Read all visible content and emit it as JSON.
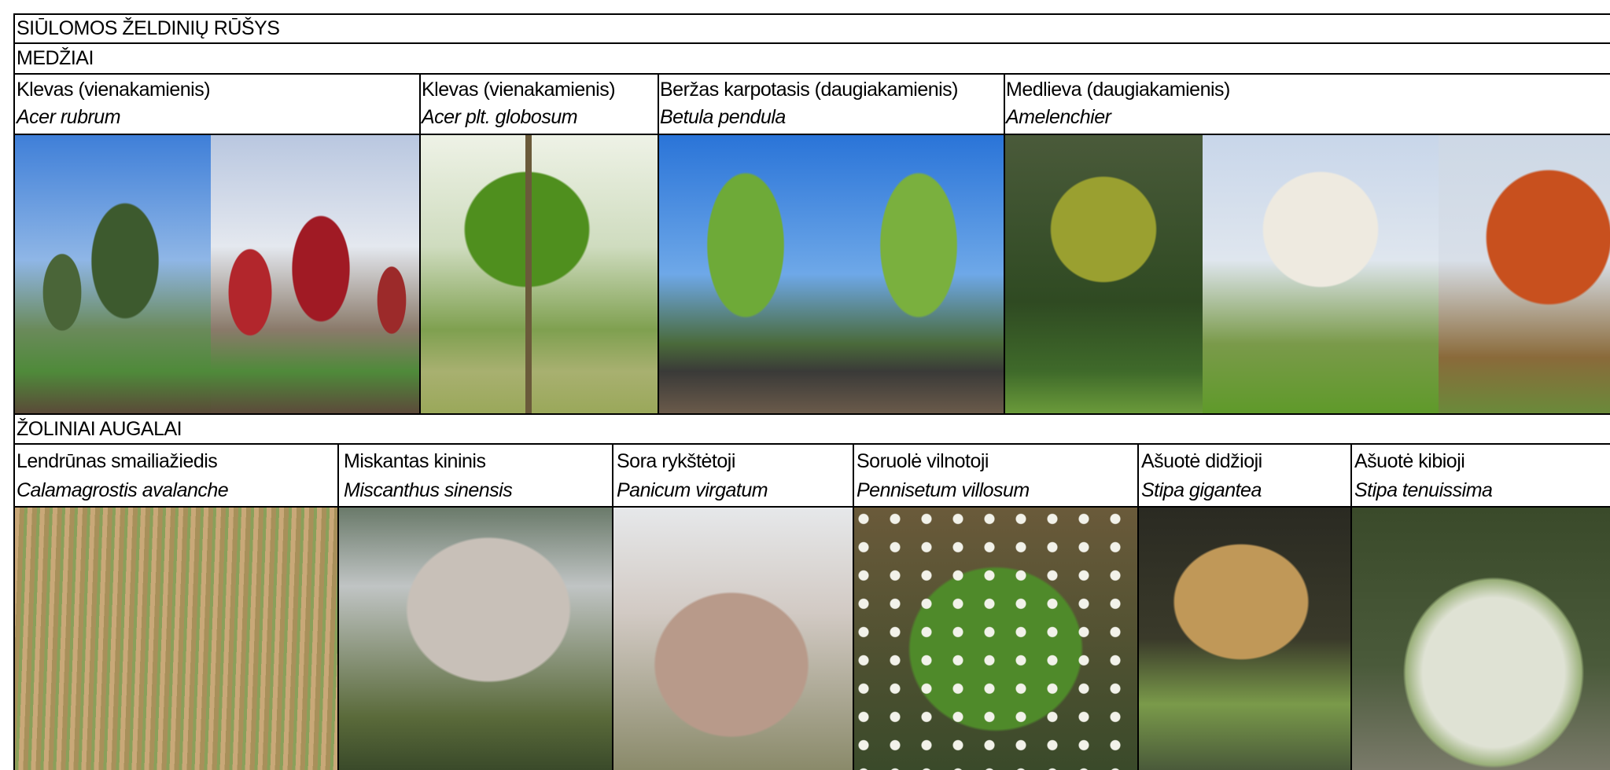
{
  "header": {
    "title": "SIŪLOMOS ŽELDINIŲ RŪŠYS"
  },
  "sections": [
    {
      "title": "MEDŽIAI",
      "items": [
        {
          "common": "Klevas (vienakamienis)",
          "latin": "Acer rubrum"
        },
        {
          "common": "Klevas (vienakamienis)",
          "latin": "Acer plt. globosum"
        },
        {
          "common": "Beržas karpotasis (daugiakamienis)",
          "latin": "Betula pendula"
        },
        {
          "common": "Medlieva (daugiakamienis)",
          "latin": "Amelenchier"
        }
      ]
    },
    {
      "title": "ŽOLINIAI AUGALAI",
      "items": [
        {
          "common": "Lendrūnas smailiažiedis",
          "latin": "Calamagrostis avalanche"
        },
        {
          "common": "Miskantas kininis",
          "latin": "Miscanthus sinensis"
        },
        {
          "common": "Sora rykštėtoji",
          "latin": "Panicum virgatum"
        },
        {
          "common": "Soruolė vilnotoji",
          "latin": "Pennisetum villosum"
        },
        {
          "common": "Ašuotė didžioji",
          "latin": "Stipa gigantea"
        },
        {
          "common": "Ašuotė kibioji",
          "latin": "Stipa tenuissima"
        }
      ]
    }
  ]
}
